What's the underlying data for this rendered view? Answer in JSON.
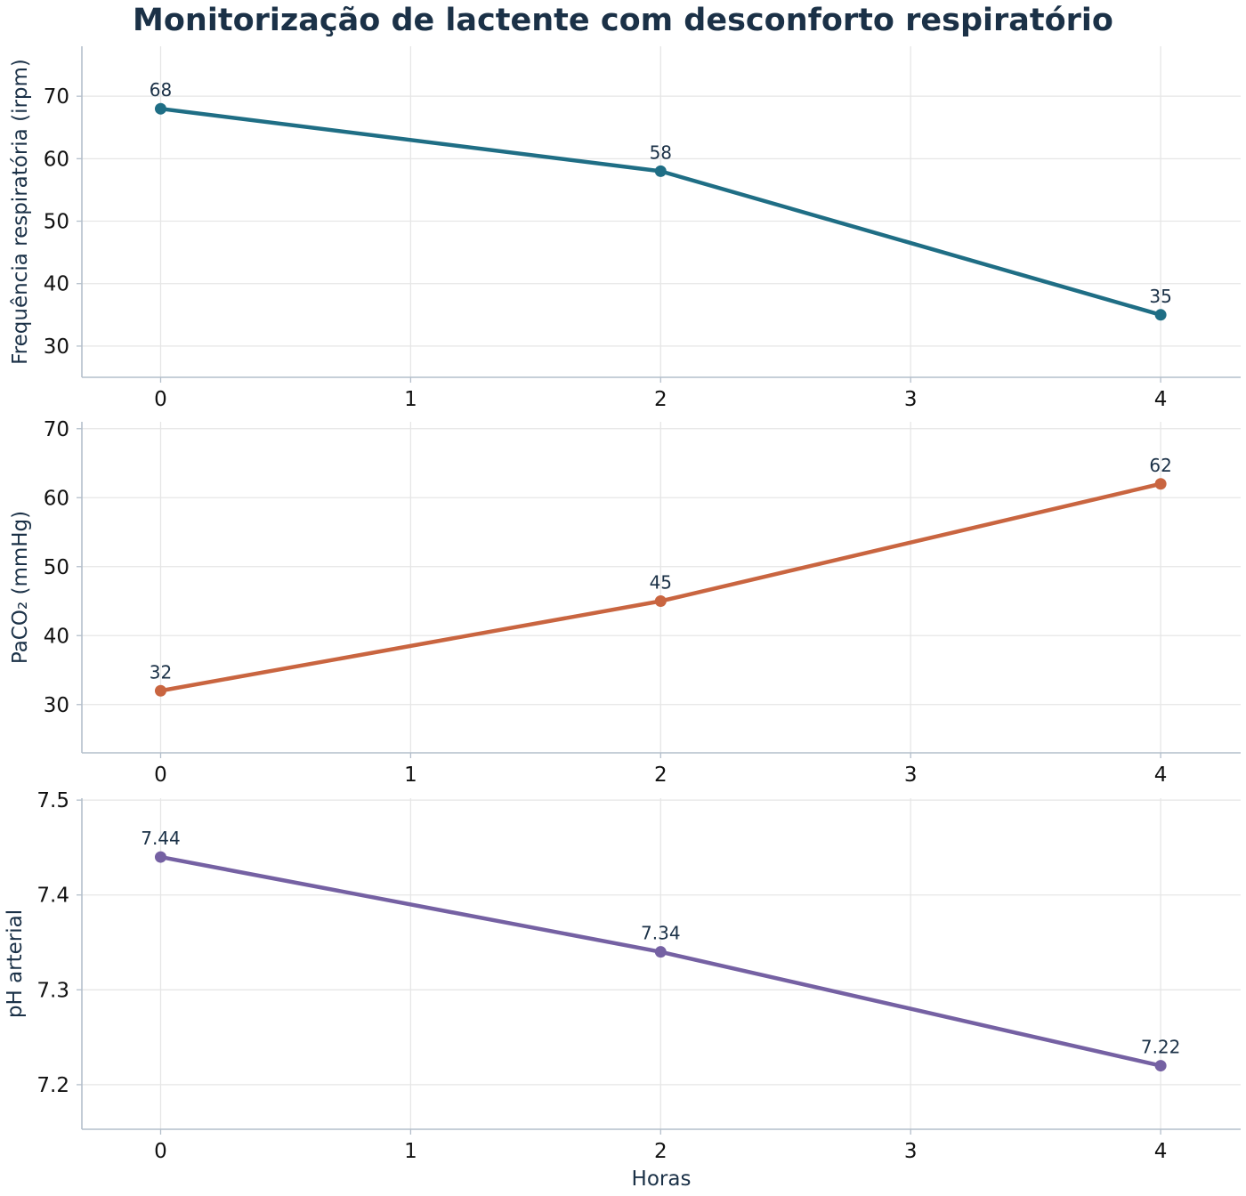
{
  "chart_data": {
    "title": "Monitorização de lactente com desconforto respiratório",
    "xlabel": "Horas",
    "x_ticks": [
      "0",
      "1",
      "2",
      "3",
      "4"
    ],
    "grid": true,
    "panels": [
      {
        "type": "line",
        "ylabel": "Frequência respiratória (irpm)",
        "x": [
          0,
          2,
          4
        ],
        "values": [
          68,
          58,
          35
        ],
        "data_labels": [
          "68",
          "58",
          "35"
        ],
        "y_ticks": [
          "30",
          "40",
          "50",
          "60",
          "70"
        ],
        "ylim": [
          25,
          78
        ],
        "color": "#1f6e85"
      },
      {
        "type": "line",
        "ylabel": "PaCO₂ (mmHg)",
        "x": [
          0,
          2,
          4
        ],
        "values": [
          32,
          45,
          62
        ],
        "data_labels": [
          "32",
          "45",
          "62"
        ],
        "y_ticks": [
          "30",
          "40",
          "50",
          "60",
          "70"
        ],
        "ylim": [
          23,
          71
        ],
        "color": "#c96540"
      },
      {
        "type": "line",
        "ylabel": "pH arterial",
        "x": [
          0,
          2,
          4
        ],
        "values": [
          7.44,
          7.34,
          7.22
        ],
        "data_labels": [
          "7.44",
          "7.34",
          "7.22"
        ],
        "y_ticks": [
          "7.2",
          "7.3",
          "7.4",
          "7.5"
        ],
        "ylim": [
          7.153,
          7.502
        ],
        "color": "#7561a3"
      }
    ],
    "xlim": [
      -0.315,
      4.32
    ]
  }
}
